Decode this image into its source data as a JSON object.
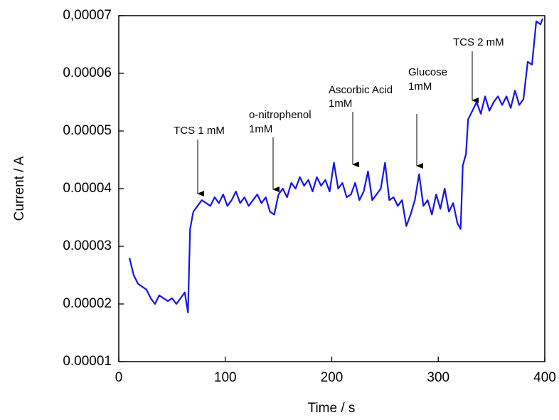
{
  "chart_data": {
    "type": "line",
    "xlabel": "Time / s",
    "ylabel": "Current /  A",
    "xlim": [
      0,
      400
    ],
    "xticks": [
      0,
      100,
      200,
      300,
      400
    ],
    "ylim": [
      1e-05,
      7e-05
    ],
    "yticks": [
      1e-05,
      2e-05,
      3e-05,
      4e-05,
      5e-05,
      6e-05,
      {
        "value": 7e-05,
        "label": "0,00007"
      }
    ],
    "x": [
      10,
      14,
      18,
      22,
      26,
      30,
      34,
      38,
      42,
      46,
      50,
      54,
      58,
      62,
      65,
      67,
      70,
      74,
      78,
      82,
      86,
      90,
      94,
      98,
      102,
      106,
      110,
      114,
      118,
      122,
      126,
      130,
      134,
      138,
      142,
      146,
      150,
      154,
      158,
      162,
      166,
      170,
      174,
      178,
      182,
      186,
      190,
      194,
      198,
      202,
      206,
      210,
      214,
      218,
      222,
      226,
      230,
      234,
      238,
      242,
      246,
      250,
      254,
      258,
      262,
      266,
      270,
      274,
      278,
      282,
      286,
      290,
      294,
      298,
      302,
      306,
      310,
      314,
      318,
      321,
      323,
      326,
      328,
      332,
      336,
      340,
      344,
      348,
      352,
      356,
      360,
      364,
      368,
      372,
      376,
      380,
      384,
      388,
      392,
      396,
      398
    ],
    "series": [
      {
        "color": "#1414e6",
        "values": [
          2.8e-05,
          2.5e-05,
          2.35e-05,
          2.3e-05,
          2.25e-05,
          2.1e-05,
          2e-05,
          2.15e-05,
          2.1e-05,
          2.05e-05,
          2.1e-05,
          2e-05,
          2.1e-05,
          2.2e-05,
          1.85e-05,
          3.3e-05,
          3.6e-05,
          3.7e-05,
          3.8e-05,
          3.75e-05,
          3.7e-05,
          3.85e-05,
          3.75e-05,
          3.9e-05,
          3.7e-05,
          3.8e-05,
          3.95e-05,
          3.75e-05,
          3.85e-05,
          3.7e-05,
          3.8e-05,
          3.9e-05,
          3.75e-05,
          3.85e-05,
          3.6e-05,
          3.55e-05,
          3.9e-05,
          4e-05,
          3.85e-05,
          4.1e-05,
          4e-05,
          4.2e-05,
          4.05e-05,
          4.15e-05,
          3.95e-05,
          4.2e-05,
          4.05e-05,
          4.15e-05,
          3.95e-05,
          4.45e-05,
          4e-05,
          4.1e-05,
          3.85e-05,
          3.9e-05,
          4.1e-05,
          3.8e-05,
          3.95e-05,
          4.3e-05,
          3.8e-05,
          3.9e-05,
          4e-05,
          4.45e-05,
          3.8e-05,
          3.85e-05,
          3.7e-05,
          3.8e-05,
          3.35e-05,
          3.55e-05,
          3.8e-05,
          4.25e-05,
          3.7e-05,
          3.8e-05,
          3.55e-05,
          3.9e-05,
          3.65e-05,
          4e-05,
          3.6e-05,
          3.75e-05,
          3.4e-05,
          3.3e-05,
          4.4e-05,
          4.6e-05,
          5.2e-05,
          5.35e-05,
          5.5e-05,
          5.3e-05,
          5.6e-05,
          5.35e-05,
          5.5e-05,
          5.6e-05,
          5.45e-05,
          5.6e-05,
          5.4e-05,
          5.7e-05,
          5.45e-05,
          5.55e-05,
          6.2e-05,
          6.15e-05,
          6.9e-05,
          6.85e-05,
          6.95e-05
        ]
      }
    ],
    "annotations": [
      [
        "TCS 1 mM"
      ],
      [
        "o-nitrophenol",
        "1mM"
      ],
      [
        "Ascorbic Acid",
        "1mM"
      ],
      [
        "Glucose",
        "1mM"
      ],
      [
        "TCS 2 mM"
      ]
    ]
  }
}
